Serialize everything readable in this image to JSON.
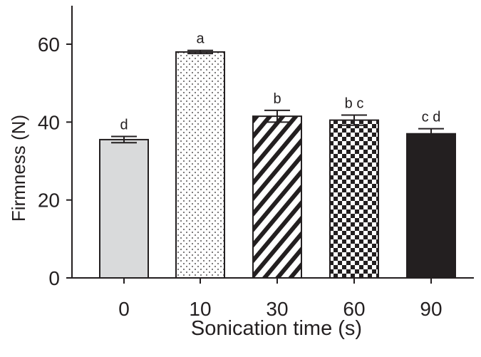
{
  "chart_data": {
    "type": "bar",
    "title": "",
    "xlabel": "Sonication time (s)",
    "ylabel": "Firmness (N)",
    "ylim": [
      0,
      70
    ],
    "yticks": [
      0,
      20,
      40,
      60
    ],
    "categories": [
      "0",
      "10",
      "30",
      "60",
      "90"
    ],
    "values": [
      35.5,
      58.0,
      41.5,
      40.5,
      37.0
    ],
    "errors": [
      0.8,
      0.4,
      1.5,
      1.3,
      1.3
    ],
    "significance_labels": [
      "d",
      "a",
      "b",
      "b c",
      "c d"
    ],
    "bar_patterns": [
      "solid-light-gray",
      "dots",
      "diagonal-stripes",
      "checkerboard",
      "solid-black"
    ],
    "grid": false,
    "colors": {
      "light_gray": "#d9dadb",
      "ink": "#231f20",
      "background": "#ffffff"
    }
  }
}
